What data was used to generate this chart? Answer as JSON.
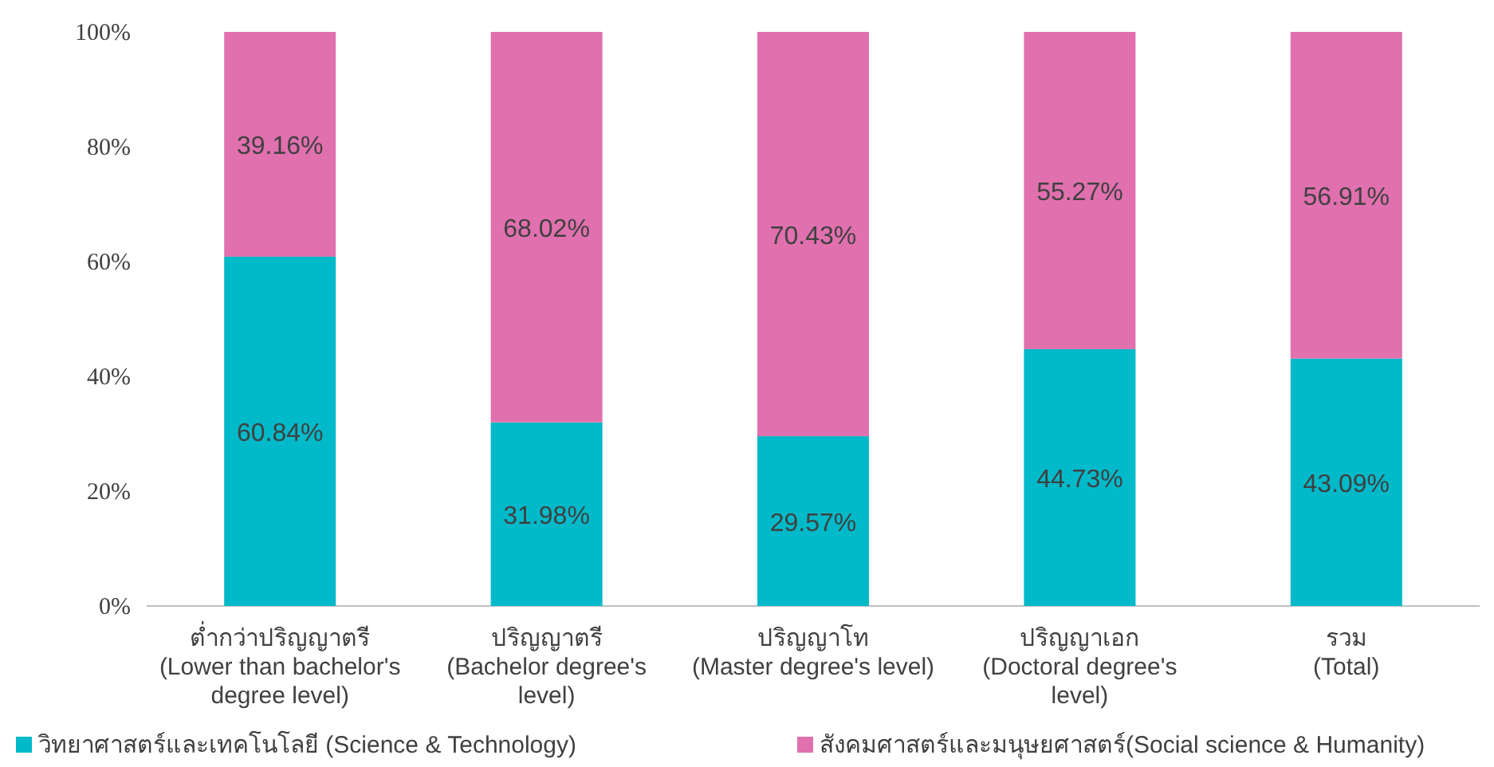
{
  "chart_data": {
    "type": "bar",
    "stacked": true,
    "categories": [
      "ต่ำกว่าปริญญาตรี\n(Lower than bachelor's\ndegree level)",
      "ปริญญาตรี\n(Bachelor degree's\nlevel)",
      "ปริญญาโท\n(Master degree's level)",
      "ปริญญาเอก\n(Doctoral degree's\nlevel)",
      "รวม\n(Total)"
    ],
    "series": [
      {
        "name": "วิทยาศาสตร์และเทคโนโลยี (Science & Technology)",
        "color": "#00b9c9",
        "values": [
          60.84,
          31.98,
          29.57,
          44.73,
          43.09
        ],
        "value_labels": [
          "60.84%",
          "31.98%",
          "29.57%",
          "44.73%",
          "43.09%"
        ]
      },
      {
        "name": "สังคมศาสตร์และมนุษยศาสตร์(Social science & Humanity)",
        "color": "#e070ae",
        "values": [
          39.16,
          68.02,
          70.43,
          55.27,
          56.91
        ],
        "value_labels": [
          "39.16%",
          "68.02%",
          "70.43%",
          "55.27%",
          "56.91%"
        ]
      }
    ],
    "ylim": [
      0,
      100
    ],
    "yticks": [
      {
        "value": 0,
        "label": "0%"
      },
      {
        "value": 20,
        "label": "20%"
      },
      {
        "value": 40,
        "label": "40%"
      },
      {
        "value": 60,
        "label": "60%"
      },
      {
        "value": 80,
        "label": "80%"
      },
      {
        "value": 100,
        "label": "100%"
      }
    ],
    "legend": "bottom"
  }
}
